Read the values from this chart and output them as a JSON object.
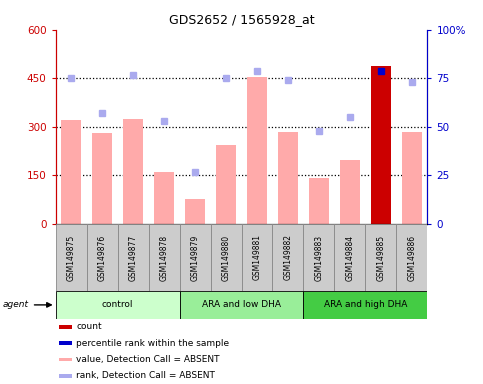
{
  "title": "GDS2652 / 1565928_at",
  "samples": [
    "GSM149875",
    "GSM149876",
    "GSM149877",
    "GSM149878",
    "GSM149879",
    "GSM149880",
    "GSM149881",
    "GSM149882",
    "GSM149883",
    "GSM149884",
    "GSM149885",
    "GSM149886"
  ],
  "bar_values": [
    320,
    282,
    325,
    160,
    78,
    245,
    455,
    283,
    143,
    198,
    490,
    283
  ],
  "bar_colors": [
    "#ffaaaa",
    "#ffaaaa",
    "#ffaaaa",
    "#ffaaaa",
    "#ffaaaa",
    "#ffaaaa",
    "#ffaaaa",
    "#ffaaaa",
    "#ffaaaa",
    "#ffaaaa",
    "#cc0000",
    "#ffaaaa"
  ],
  "rank_dots_pct": [
    75,
    57,
    77,
    53,
    27,
    75,
    79,
    74,
    48,
    55,
    79,
    73
  ],
  "rank_dot_color": "#aaaaee",
  "rank_dot_color_highlight": "#0000cc",
  "highlight_idx": 10,
  "ylim_left": [
    0,
    600
  ],
  "ylim_right": [
    0,
    100
  ],
  "yticks_left": [
    0,
    150,
    300,
    450,
    600
  ],
  "ytick_labels_left": [
    "0",
    "150",
    "300",
    "450",
    "600"
  ],
  "yticks_right": [
    0,
    25,
    50,
    75,
    100
  ],
  "ytick_labels_right": [
    "0",
    "25",
    "50",
    "75",
    "100%"
  ],
  "grid_lines": [
    150,
    300,
    450
  ],
  "groups": [
    {
      "label": "control",
      "start": 0,
      "end": 3,
      "color": "#ccffcc"
    },
    {
      "label": "ARA and low DHA",
      "start": 4,
      "end": 7,
      "color": "#99ee99"
    },
    {
      "label": "ARA and high DHA",
      "start": 8,
      "end": 11,
      "color": "#44cc44"
    }
  ],
  "legend_items": [
    {
      "label": "count",
      "color": "#cc0000"
    },
    {
      "label": "percentile rank within the sample",
      "color": "#0000cc"
    },
    {
      "label": "value, Detection Call = ABSENT",
      "color": "#ffaaaa"
    },
    {
      "label": "rank, Detection Call = ABSENT",
      "color": "#aaaaee"
    }
  ],
  "left_axis_color": "#cc0000",
  "right_axis_color": "#0000cc",
  "sample_box_color": "#cccccc",
  "sample_box_edge": "#888888"
}
